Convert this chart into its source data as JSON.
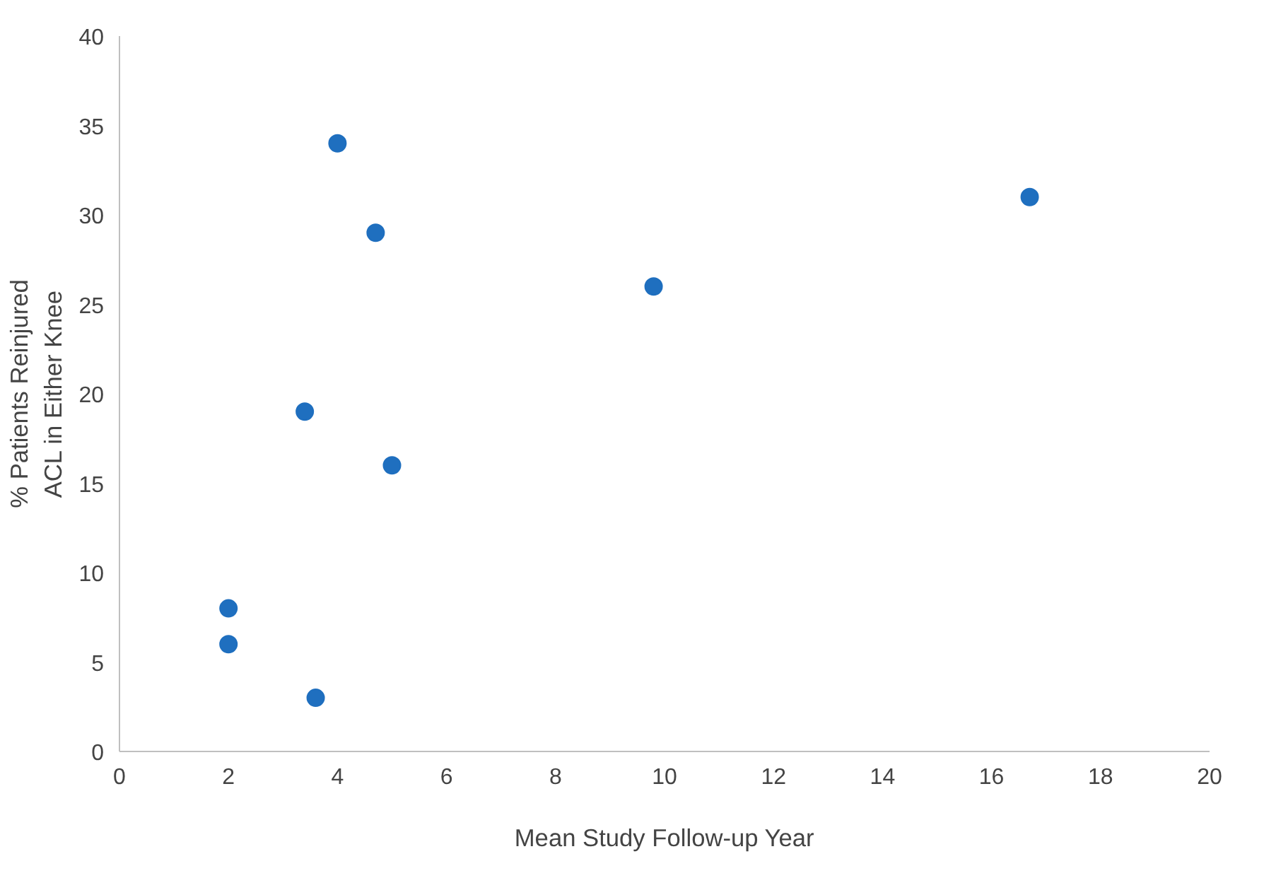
{
  "chart_data": {
    "type": "scatter",
    "xlabel": "Mean Study Follow-up Year",
    "ylabel": "% Patients Reinjured\nACL in Either Knee",
    "x": [
      2,
      2,
      3.6,
      3.4,
      4.0,
      4.7,
      5.0,
      9.8,
      16.7
    ],
    "values": [
      8,
      6,
      3,
      19,
      34,
      29,
      16,
      26,
      31
    ],
    "color": "#1f6fbf",
    "marker": "circle",
    "grid": false,
    "xlim": [
      0,
      20
    ],
    "xticks": [
      0,
      2,
      4,
      6,
      8,
      10,
      12,
      14,
      16,
      18,
      20
    ],
    "ylim": [
      0,
      40
    ],
    "yticks": [
      0,
      5,
      10,
      15,
      20,
      25,
      30,
      35,
      40
    ]
  }
}
